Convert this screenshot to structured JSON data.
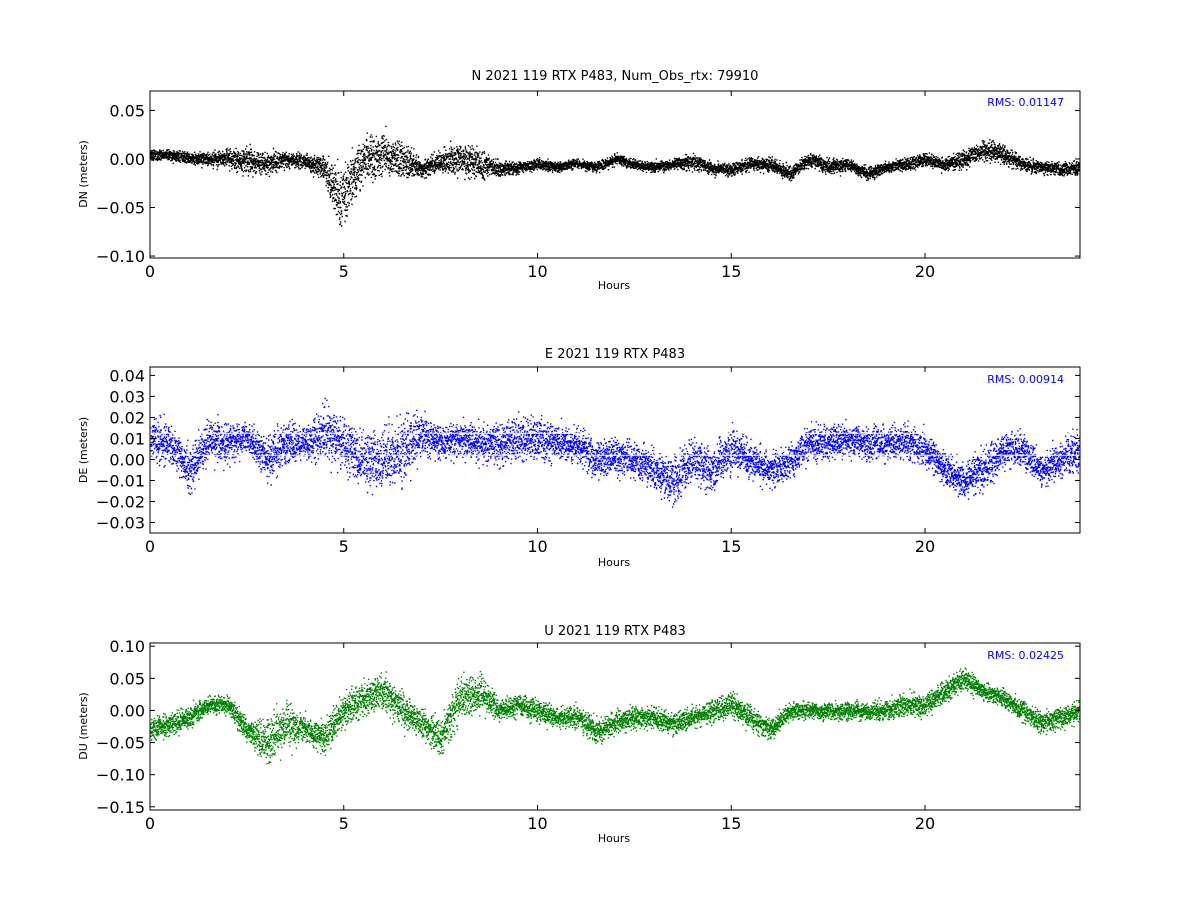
{
  "chart_data": [
    {
      "type": "scatter",
      "title": "N 2021 119 RTX  P483, Num_Obs_rtx: 79910",
      "xlabel": "Hours",
      "ylabel": "DN (meters)",
      "xlim": [
        0,
        24
      ],
      "ylim": [
        -0.102,
        0.07
      ],
      "xticks": [
        0,
        5,
        10,
        15,
        20
      ],
      "xtick_labels": [
        "0",
        "5",
        "10",
        "15",
        "20"
      ],
      "yticks": [
        0.05,
        0.0,
        -0.05,
        -0.1
      ],
      "ytick_labels": [
        "0.05",
        "0.00",
        "−0.05",
        "−0.10"
      ],
      "annotation": "RMS:  0.01147",
      "annotation_position": "top-right",
      "annotation_color": "#0000ff",
      "color": "#000000",
      "grid": false,
      "series": [
        {
          "x": [
            0,
            0.5,
            1,
            1.5,
            2,
            2.5,
            3,
            3.5,
            4,
            4.5,
            4.8,
            5,
            5.2,
            5.5,
            6,
            6.5,
            7,
            7.5,
            8,
            8.5,
            9,
            9.5,
            10,
            10.5,
            11,
            11.5,
            12,
            12.5,
            13,
            13.5,
            14,
            14.5,
            15,
            15.5,
            16,
            16.5,
            17,
            17.5,
            18,
            18.5,
            19,
            19.5,
            20,
            20.5,
            21,
            21.5,
            22,
            22.5,
            23,
            23.5,
            24
          ],
          "center": [
            0.005,
            0.004,
            0.002,
            0.0,
            0.002,
            -0.002,
            -0.005,
            0.0,
            -0.002,
            -0.01,
            -0.035,
            -0.04,
            -0.02,
            0.0,
            0.005,
            0.0,
            -0.01,
            -0.003,
            0.0,
            -0.005,
            -0.01,
            -0.008,
            -0.005,
            -0.008,
            -0.004,
            -0.008,
            0.0,
            -0.005,
            -0.008,
            -0.005,
            -0.002,
            -0.01,
            -0.01,
            -0.005,
            -0.005,
            -0.015,
            0.0,
            -0.008,
            -0.005,
            -0.015,
            -0.008,
            -0.005,
            0.0,
            -0.005,
            0.0,
            0.01,
            0.005,
            -0.005,
            -0.008,
            -0.01,
            -0.008
          ],
          "spread": [
            0.008,
            0.008,
            0.008,
            0.01,
            0.015,
            0.02,
            0.02,
            0.012,
            0.012,
            0.02,
            0.04,
            0.05,
            0.04,
            0.035,
            0.035,
            0.03,
            0.012,
            0.02,
            0.025,
            0.025,
            0.012,
            0.008,
            0.008,
            0.008,
            0.008,
            0.008,
            0.008,
            0.008,
            0.008,
            0.008,
            0.012,
            0.01,
            0.01,
            0.01,
            0.01,
            0.012,
            0.01,
            0.012,
            0.01,
            0.01,
            0.008,
            0.01,
            0.01,
            0.01,
            0.015,
            0.015,
            0.015,
            0.01,
            0.01,
            0.01,
            0.01
          ]
        }
      ]
    },
    {
      "type": "scatter",
      "title": "E 2021 119 RTX  P483",
      "xlabel": "Hours",
      "ylabel": "DE (meters)",
      "xlim": [
        0,
        24
      ],
      "ylim": [
        -0.035,
        0.044
      ],
      "xticks": [
        0,
        5,
        10,
        15,
        20
      ],
      "xtick_labels": [
        "0",
        "5",
        "10",
        "15",
        "20"
      ],
      "yticks": [
        0.04,
        0.03,
        0.02,
        0.01,
        0.0,
        -0.01,
        -0.02,
        -0.03
      ],
      "ytick_labels": [
        "0.04",
        "0.03",
        "0.02",
        "0.01",
        "0.00",
        "−0.01",
        "−0.02",
        "−0.03"
      ],
      "annotation": "RMS:  0.00914",
      "annotation_position": "top-right",
      "annotation_color": "#0000ff",
      "color": "#0000ff",
      "grid": false,
      "series": [
        {
          "x": [
            0,
            0.5,
            1,
            1.5,
            2,
            2.5,
            3,
            3.5,
            4,
            4.5,
            5,
            5.5,
            6,
            6.5,
            7,
            7.5,
            8,
            8.5,
            9,
            9.5,
            10,
            10.5,
            11,
            11.5,
            12,
            12.5,
            13,
            13.5,
            14,
            14.5,
            15,
            15.5,
            16,
            16.5,
            17,
            17.5,
            18,
            18.5,
            19,
            19.5,
            20,
            20.5,
            21,
            21.5,
            22,
            22.5,
            23,
            23.5,
            24
          ],
          "center": [
            0.01,
            0.008,
            -0.005,
            0.01,
            0.008,
            0.01,
            0.0,
            0.008,
            0.008,
            0.012,
            0.008,
            0.0,
            0.0,
            0.005,
            0.012,
            0.008,
            0.01,
            0.008,
            0.008,
            0.01,
            0.01,
            0.008,
            0.008,
            0.0,
            0.002,
            0.0,
            -0.005,
            -0.01,
            0.0,
            -0.005,
            0.005,
            0.0,
            -0.005,
            0.0,
            0.008,
            0.008,
            0.01,
            0.008,
            0.008,
            0.008,
            0.005,
            -0.005,
            -0.01,
            -0.005,
            0.005,
            0.005,
            -0.005,
            0.0,
            0.005
          ],
          "spread": [
            0.015,
            0.015,
            0.015,
            0.015,
            0.015,
            0.01,
            0.015,
            0.015,
            0.012,
            0.02,
            0.02,
            0.02,
            0.02,
            0.025,
            0.015,
            0.012,
            0.012,
            0.012,
            0.015,
            0.015,
            0.015,
            0.012,
            0.012,
            0.015,
            0.012,
            0.012,
            0.015,
            0.015,
            0.015,
            0.015,
            0.015,
            0.012,
            0.012,
            0.012,
            0.012,
            0.012,
            0.012,
            0.012,
            0.012,
            0.012,
            0.012,
            0.012,
            0.012,
            0.015,
            0.012,
            0.012,
            0.012,
            0.012,
            0.015
          ]
        }
      ]
    },
    {
      "type": "scatter",
      "title": "U 2021 119 RTX  P483",
      "xlabel": "Hours",
      "ylabel": "DU (meters)",
      "xlim": [
        0,
        24
      ],
      "ylim": [
        -0.155,
        0.105
      ],
      "xticks": [
        0,
        5,
        10,
        15,
        20
      ],
      "xtick_labels": [
        "0",
        "5",
        "10",
        "15",
        "20"
      ],
      "yticks": [
        0.1,
        0.05,
        0.0,
        -0.05,
        -0.1,
        -0.15
      ],
      "ytick_labels": [
        "0.10",
        "0.05",
        "0.00",
        "−0.05",
        "−0.10",
        "−0.15"
      ],
      "annotation": "RMS:  0.02425",
      "annotation_position": "top-right",
      "annotation_color": "#0000ff",
      "color": "#008000",
      "grid": false,
      "series": [
        {
          "x": [
            0,
            0.5,
            1,
            1.5,
            2,
            2.5,
            3,
            3.5,
            4,
            4.5,
            5,
            5.5,
            6,
            6.5,
            7,
            7.5,
            8,
            8.5,
            9,
            9.5,
            10,
            10.5,
            11,
            11.5,
            12,
            12.5,
            13,
            13.5,
            14,
            14.5,
            15,
            15.5,
            16,
            16.5,
            17,
            17.5,
            18,
            18.5,
            19,
            19.5,
            20,
            20.5,
            21,
            21.5,
            22,
            22.5,
            23,
            23.5,
            24
          ],
          "center": [
            -0.03,
            -0.02,
            -0.01,
            0.01,
            0.01,
            -0.03,
            -0.05,
            -0.02,
            -0.03,
            -0.04,
            0.0,
            0.02,
            0.03,
            0.0,
            -0.02,
            -0.04,
            0.02,
            0.03,
            0.0,
            0.01,
            0.0,
            -0.01,
            -0.01,
            -0.03,
            -0.02,
            -0.01,
            -0.01,
            -0.02,
            -0.01,
            0.0,
            0.01,
            -0.01,
            -0.03,
            0.0,
            0.0,
            0.0,
            0.0,
            0.0,
            0.0,
            0.01,
            0.01,
            0.03,
            0.05,
            0.03,
            0.02,
            0.0,
            -0.02,
            -0.01,
            0.0
          ],
          "spread": [
            0.03,
            0.025,
            0.025,
            0.02,
            0.02,
            0.03,
            0.05,
            0.05,
            0.03,
            0.035,
            0.04,
            0.04,
            0.045,
            0.04,
            0.03,
            0.045,
            0.05,
            0.045,
            0.025,
            0.025,
            0.025,
            0.025,
            0.025,
            0.03,
            0.025,
            0.025,
            0.025,
            0.025,
            0.025,
            0.025,
            0.03,
            0.03,
            0.025,
            0.02,
            0.02,
            0.02,
            0.02,
            0.02,
            0.025,
            0.025,
            0.025,
            0.025,
            0.025,
            0.02,
            0.02,
            0.025,
            0.025,
            0.025,
            0.025
          ]
        }
      ]
    }
  ]
}
